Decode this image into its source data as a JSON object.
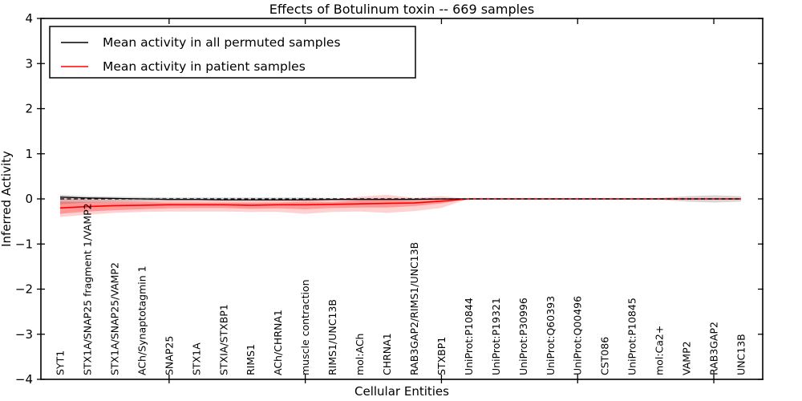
{
  "chart_data": {
    "type": "line",
    "title": "Effects of Botulinum toxin -- 669 samples",
    "xlabel": "Cellular Entities",
    "ylabel": "Inferred Activity",
    "ylim": [
      -4,
      4
    ],
    "grid": false,
    "legend_position": "upper-left",
    "zero_line": {
      "style": "dashed",
      "color": "#000000"
    },
    "ytick_values": [
      4,
      3,
      2,
      1,
      0,
      -1,
      -2,
      -3,
      -4
    ],
    "ytick_labels": [
      "4",
      "3",
      "2",
      "1",
      "0",
      "−1",
      "−2",
      "−3",
      "−4"
    ],
    "major_x_tick_indices": [
      4,
      9,
      14,
      19,
      24
    ],
    "categories": [
      "SYT1",
      "STX1A/SNAP25 fragment 1/VAMP2",
      "STX1A/SNAP25/VAMP2",
      "ACh/Synaptotagmin 1",
      "SNAP25",
      "STX1A",
      "STXIA/STXBP1",
      "RIMS1",
      "ACh/CHRNA1",
      "muscle contraction",
      "RIMS1/UNC13B",
      "mol:ACh",
      "CHRNA1",
      "RAB3GAP2/RIMS1/UNC13B",
      "STXBP1",
      "UniProt:P10844",
      "UniProt:P19321",
      "UniProt:P30996",
      "UniProt:Q60393",
      "UniProt:Q00496",
      "CST086",
      "UniProt:P10845",
      "mol:Ca2+",
      "VAMP2",
      "RAB3GAP2",
      "UNC13B"
    ],
    "series": [
      {
        "name": "Mean activity in all permuted samples",
        "color": "#000000",
        "values": [
          0.04,
          0.02,
          0.01,
          0.0,
          -0.01,
          -0.01,
          -0.02,
          -0.02,
          -0.02,
          -0.02,
          -0.01,
          -0.01,
          -0.01,
          -0.01,
          0.0,
          0.0,
          0.0,
          0.0,
          0.0,
          0.0,
          0.0,
          0.0,
          0.0,
          0.0,
          0.0,
          0.0
        ]
      },
      {
        "name": "Mean activity in patient samples",
        "color": "#ff0000",
        "values": [
          -0.2,
          -0.17,
          -0.15,
          -0.14,
          -0.13,
          -0.13,
          -0.13,
          -0.14,
          -0.13,
          -0.13,
          -0.12,
          -0.11,
          -0.1,
          -0.09,
          -0.05,
          0.0,
          0.0,
          0.0,
          0.0,
          0.0,
          0.0,
          0.0,
          0.0,
          0.0,
          0.0,
          0.0
        ]
      }
    ],
    "bands": [
      {
        "name": "permuted-samples-ci",
        "color": "#000000",
        "opacity": 0.16,
        "upper": [
          0.09,
          0.06,
          0.05,
          0.04,
          0.03,
          0.03,
          0.03,
          0.03,
          0.03,
          0.03,
          0.02,
          0.02,
          0.02,
          0.02,
          0.01,
          0.01,
          0.01,
          0.01,
          0.01,
          0.01,
          0.01,
          0.01,
          0.02,
          0.06,
          0.08,
          0.06
        ],
        "lower": [
          -0.12,
          -0.08,
          -0.07,
          -0.06,
          -0.05,
          -0.05,
          -0.05,
          -0.05,
          -0.05,
          -0.05,
          -0.04,
          -0.04,
          -0.03,
          -0.03,
          -0.02,
          -0.01,
          -0.01,
          -0.01,
          -0.01,
          -0.01,
          -0.01,
          -0.01,
          -0.02,
          -0.06,
          -0.08,
          -0.06
        ]
      },
      {
        "name": "patient-samples-ci-outer",
        "color": "#ff0000",
        "opacity": 0.18,
        "upper": [
          0.02,
          -0.01,
          -0.02,
          -0.03,
          -0.03,
          -0.04,
          -0.04,
          -0.04,
          -0.03,
          0.0,
          -0.02,
          0.05,
          0.09,
          0.02,
          0.06,
          0.0,
          0.0,
          0.0,
          0.0,
          0.0,
          0.0,
          0.0,
          0.0,
          0.0,
          0.0,
          0.0
        ],
        "lower": [
          -0.4,
          -0.35,
          -0.31,
          -0.29,
          -0.28,
          -0.28,
          -0.28,
          -0.29,
          -0.29,
          -0.33,
          -0.29,
          -0.28,
          -0.31,
          -0.27,
          -0.2,
          0.0,
          0.0,
          0.0,
          0.0,
          0.0,
          0.0,
          0.0,
          0.0,
          0.0,
          0.0,
          0.0
        ]
      },
      {
        "name": "patient-samples-ci-inner",
        "color": "#ff0000",
        "opacity": 0.28,
        "upper": [
          -0.06,
          -0.07,
          -0.07,
          -0.07,
          -0.08,
          -0.08,
          -0.08,
          -0.08,
          -0.08,
          -0.06,
          -0.07,
          -0.03,
          -0.02,
          -0.04,
          -0.01,
          0.0,
          0.0,
          0.0,
          0.0,
          0.0,
          0.0,
          0.0,
          0.0,
          0.0,
          0.0,
          0.0
        ],
        "lower": [
          -0.33,
          -0.28,
          -0.25,
          -0.23,
          -0.21,
          -0.2,
          -0.2,
          -0.22,
          -0.21,
          -0.23,
          -0.2,
          -0.19,
          -0.19,
          -0.16,
          -0.1,
          0.0,
          0.0,
          0.0,
          0.0,
          0.0,
          0.0,
          0.0,
          0.0,
          0.0,
          0.0,
          0.0
        ]
      }
    ]
  },
  "legend": {
    "items": [
      {
        "label": "Mean activity in all permuted samples",
        "color": "#000000"
      },
      {
        "label": "Mean activity in patient samples",
        "color": "#ff0000"
      }
    ]
  }
}
